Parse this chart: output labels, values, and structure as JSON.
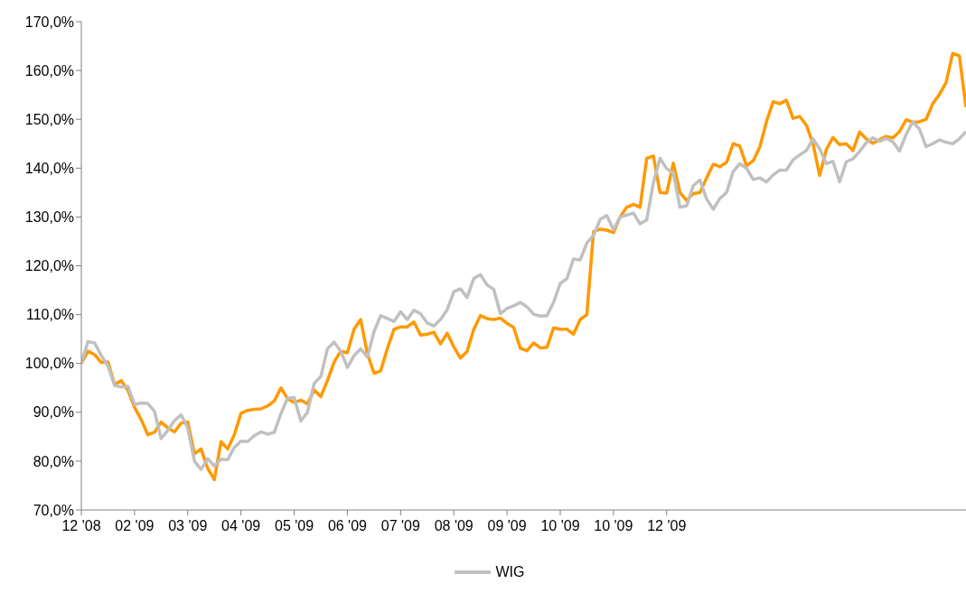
{
  "chart_data": {
    "type": "line",
    "ylim": [
      70,
      170
    ],
    "yticks": [
      {
        "value": 70,
        "label": "70,0%"
      },
      {
        "value": 80,
        "label": "80,0%"
      },
      {
        "value": 90,
        "label": "90,0%"
      },
      {
        "value": 100,
        "label": "100,0%"
      },
      {
        "value": 110,
        "label": "110,0%"
      },
      {
        "value": 120,
        "label": "120,0%"
      },
      {
        "value": 130,
        "label": "130,0%"
      },
      {
        "value": 140,
        "label": "140,0%"
      },
      {
        "value": 150,
        "label": "150,0%"
      },
      {
        "value": 160,
        "label": "160,0%"
      },
      {
        "value": 170,
        "label": "170,0%"
      }
    ],
    "categories": [
      "12 '08",
      null,
      null,
      null,
      null,
      null,
      null,
      null,
      "02 '09",
      null,
      null,
      null,
      null,
      null,
      null,
      null,
      "03 '09",
      null,
      null,
      null,
      null,
      null,
      null,
      null,
      "04 '09",
      null,
      null,
      null,
      null,
      null,
      null,
      null,
      "05 '09",
      null,
      null,
      null,
      null,
      null,
      null,
      null,
      "06 '09",
      null,
      null,
      null,
      null,
      null,
      null,
      null,
      "07 '09",
      null,
      null,
      null,
      null,
      null,
      null,
      null,
      "08 '09",
      null,
      null,
      null,
      null,
      null,
      null,
      null,
      "09 '09",
      null,
      null,
      null,
      null,
      null,
      null,
      null,
      "10 '09",
      null,
      null,
      null,
      null,
      null,
      null,
      null,
      "10 '09",
      null,
      null,
      null,
      null,
      null,
      null,
      null,
      "12 '09",
      null,
      null,
      null,
      null,
      null,
      null,
      null,
      null,
      null,
      null,
      null,
      null,
      null,
      null,
      null,
      null,
      null,
      null,
      null,
      null,
      null,
      null,
      null,
      null,
      null,
      null,
      null,
      null,
      null,
      null,
      null,
      null,
      null,
      null,
      null,
      null,
      null,
      null,
      null,
      null,
      null,
      null,
      null,
      null,
      null
    ],
    "grid": false,
    "legend": "bottom",
    "marker": "none",
    "line_style": "solid",
    "series": [
      {
        "color": "#ff9900",
        "values": [
          100,
          102.5,
          101.8,
          100.2,
          100.3,
          95.7,
          96.5,
          94.5,
          91,
          88.5,
          85.4,
          85.9,
          88,
          86.8,
          86,
          87.8,
          88,
          81.5,
          82.5,
          78.5,
          76.2,
          84,
          82.5,
          85.4,
          89.8,
          90.4,
          90.6,
          90.7,
          91.3,
          92.3,
          95,
          92.8,
          92,
          92.5,
          91.7,
          94.6,
          93.2,
          96.5,
          100.3,
          102.5,
          102.2,
          107,
          109,
          102,
          98,
          98.5,
          103,
          107,
          107.5,
          107.5,
          108.5,
          105.8,
          106,
          106.4,
          104,
          106.2,
          103.4,
          101.1,
          102.5,
          107,
          109.8,
          109.2,
          109,
          109.3,
          108.2,
          107.4,
          103.1,
          102.6,
          104.2,
          103.2,
          103.3,
          107.3,
          107,
          107,
          106,
          109,
          110,
          127,
          127.5,
          127.3,
          126.8,
          130,
          132,
          132.6,
          132,
          142,
          142.5,
          135,
          134.9,
          141,
          135,
          133.4,
          134.8,
          135,
          138,
          140.8,
          140.3,
          141.2,
          145,
          144.5,
          140.5,
          141.5,
          144.3,
          149.5,
          153.6,
          153.2,
          153.9,
          150.2,
          150.6,
          148.8,
          145,
          138.5,
          143.8,
          146.3,
          144.8,
          145,
          143.6,
          147.4,
          146,
          145.1,
          145.8,
          146.5,
          146.2,
          147.5,
          149.9,
          149.4,
          149.5,
          150,
          153.2,
          155.1,
          157.5,
          163.5,
          163,
          152.5
        ]
      },
      {
        "name": "WIG",
        "color": "#c0c0c0",
        "values": [
          100,
          104.5,
          104.2,
          101.6,
          99.5,
          95.5,
          95.2,
          95.3,
          91.6,
          91.9,
          91.8,
          90.2,
          84.6,
          86.3,
          88.3,
          89.5,
          86.8,
          80,
          78.3,
          80.5,
          79,
          80.4,
          80.3,
          82.8,
          84.1,
          84,
          85.2,
          86,
          85.5,
          85.9,
          89.7,
          92.9,
          93,
          88.2,
          90,
          95.9,
          97.3,
          103,
          104.4,
          102.5,
          99.2,
          101.6,
          103,
          101.3,
          106.5,
          109.8,
          109.2,
          108.6,
          110.6,
          109,
          110.9,
          110.2,
          108.3,
          107.7,
          109,
          111,
          114.7,
          115.3,
          113.5,
          117.4,
          118.2,
          116.1,
          115.2,
          110.2,
          111.3,
          111.8,
          112.5,
          111.6,
          110.1,
          109.7,
          109.8,
          112.5,
          116.4,
          117.4,
          121.4,
          121.2,
          124.7,
          126.2,
          129.5,
          130.3,
          127.4,
          130,
          130.4,
          130.8,
          128.6,
          129.4,
          137,
          142,
          139.9,
          139,
          132,
          132.3,
          136.4,
          137.6,
          133.7,
          131.6,
          133.8,
          135,
          139.3,
          140.9,
          140,
          137.7,
          138,
          137.2,
          138.6,
          139.6,
          139.6,
          141.7,
          142.7,
          143.6,
          146,
          144,
          140.9,
          141.4,
          137.2,
          141.3,
          141.9,
          143.4,
          145.2,
          146.2,
          145.5,
          146.1,
          145.4,
          143.5,
          146.9,
          149.5,
          148,
          144.4,
          145,
          145.8,
          145.3,
          145,
          146,
          147.5
        ]
      }
    ]
  }
}
